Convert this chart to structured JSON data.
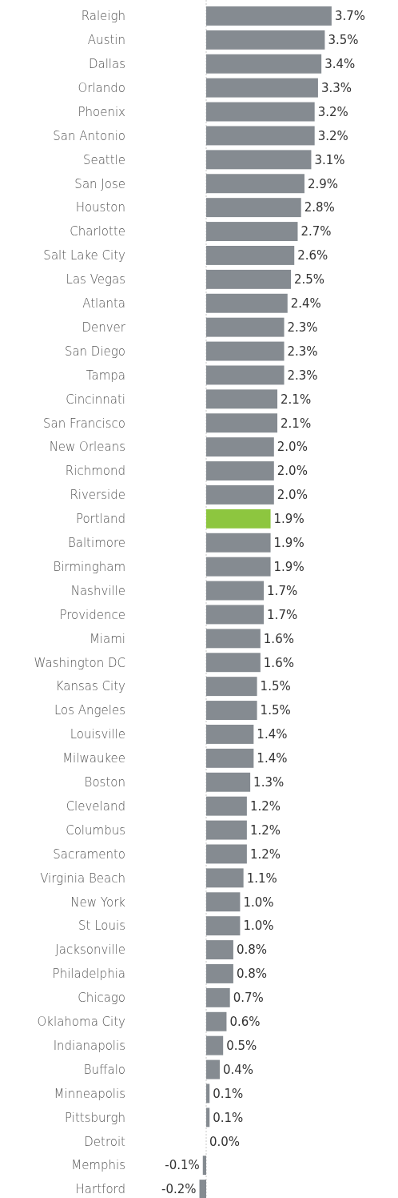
{
  "chart_data": {
    "type": "bar",
    "orientation": "horizontal",
    "ref_lines": [
      {
        "axis": "x",
        "value": 0,
        "color": "#c8c8c8",
        "line_style": "dashed"
      }
    ],
    "categories": [
      "Raleigh",
      "Austin",
      "Dallas",
      "Orlando",
      "Phoenix",
      "San Antonio",
      "Seattle",
      "San Jose",
      "Houston",
      "Charlotte",
      "Salt Lake City",
      "Las Vegas",
      "Atlanta",
      "Denver",
      "San Diego",
      "Tampa",
      "Cincinnati",
      "San Francisco",
      "New Orleans",
      "Richmond",
      "Riverside",
      "Portland",
      "Baltimore",
      "Birmingham",
      "Nashville",
      "Providence",
      "Miami",
      "Washington DC",
      "Kansas City",
      "Los Angeles",
      "Louisville",
      "Milwaukee",
      "Boston",
      "Cleveland",
      "Columbus",
      "Sacramento",
      "Virginia Beach",
      "New York",
      "St Louis",
      "Jacksonville",
      "Philadelphia",
      "Chicago",
      "Oklahoma City",
      "Indianapolis",
      "Buffalo",
      "Minneapolis",
      "Pittsburgh",
      "Detroit",
      "Memphis",
      "Hartford"
    ],
    "values": [
      3.7,
      3.5,
      3.4,
      3.3,
      3.2,
      3.2,
      3.1,
      2.9,
      2.8,
      2.7,
      2.6,
      2.5,
      2.4,
      2.3,
      2.3,
      2.3,
      2.1,
      2.1,
      2.0,
      2.0,
      2.0,
      1.9,
      1.9,
      1.9,
      1.7,
      1.7,
      1.6,
      1.6,
      1.5,
      1.5,
      1.4,
      1.4,
      1.3,
      1.2,
      1.2,
      1.2,
      1.1,
      1.0,
      1.0,
      0.8,
      0.8,
      0.7,
      0.6,
      0.5,
      0.4,
      0.1,
      0.1,
      0.0,
      -0.1,
      -0.2
    ],
    "value_labels": [
      "3.7%",
      "3.5%",
      "3.4%",
      "3.3%",
      "3.2%",
      "3.2%",
      "3.1%",
      "2.9%",
      "2.8%",
      "2.7%",
      "2.6%",
      "2.5%",
      "2.4%",
      "2.3%",
      "2.3%",
      "2.3%",
      "2.1%",
      "2.1%",
      "2.0%",
      "2.0%",
      "2.0%",
      "1.9%",
      "1.9%",
      "1.9%",
      "1.7%",
      "1.7%",
      "1.6%",
      "1.6%",
      "1.5%",
      "1.5%",
      "1.4%",
      "1.4%",
      "1.3%",
      "1.2%",
      "1.2%",
      "1.2%",
      "1.1%",
      "1.0%",
      "1.0%",
      "0.8%",
      "0.8%",
      "0.7%",
      "0.6%",
      "0.5%",
      "0.4%",
      "0.1%",
      "0.1%",
      "0.0%",
      "-0.1%",
      "-0.2%"
    ],
    "colors": [
      "#858b91",
      "#858b91",
      "#858b91",
      "#858b91",
      "#858b91",
      "#858b91",
      "#858b91",
      "#858b91",
      "#858b91",
      "#858b91",
      "#858b91",
      "#858b91",
      "#858b91",
      "#858b91",
      "#858b91",
      "#858b91",
      "#858b91",
      "#858b91",
      "#858b91",
      "#858b91",
      "#858b91",
      "#8dc63f",
      "#858b91",
      "#858b91",
      "#858b91",
      "#858b91",
      "#858b91",
      "#858b91",
      "#858b91",
      "#858b91",
      "#858b91",
      "#858b91",
      "#858b91",
      "#858b91",
      "#858b91",
      "#858b91",
      "#858b91",
      "#858b91",
      "#858b91",
      "#858b91",
      "#858b91",
      "#858b91",
      "#858b91",
      "#858b91",
      "#858b91",
      "#858b91",
      "#858b91",
      "#858b91",
      "#858b91",
      "#858b91"
    ]
  }
}
